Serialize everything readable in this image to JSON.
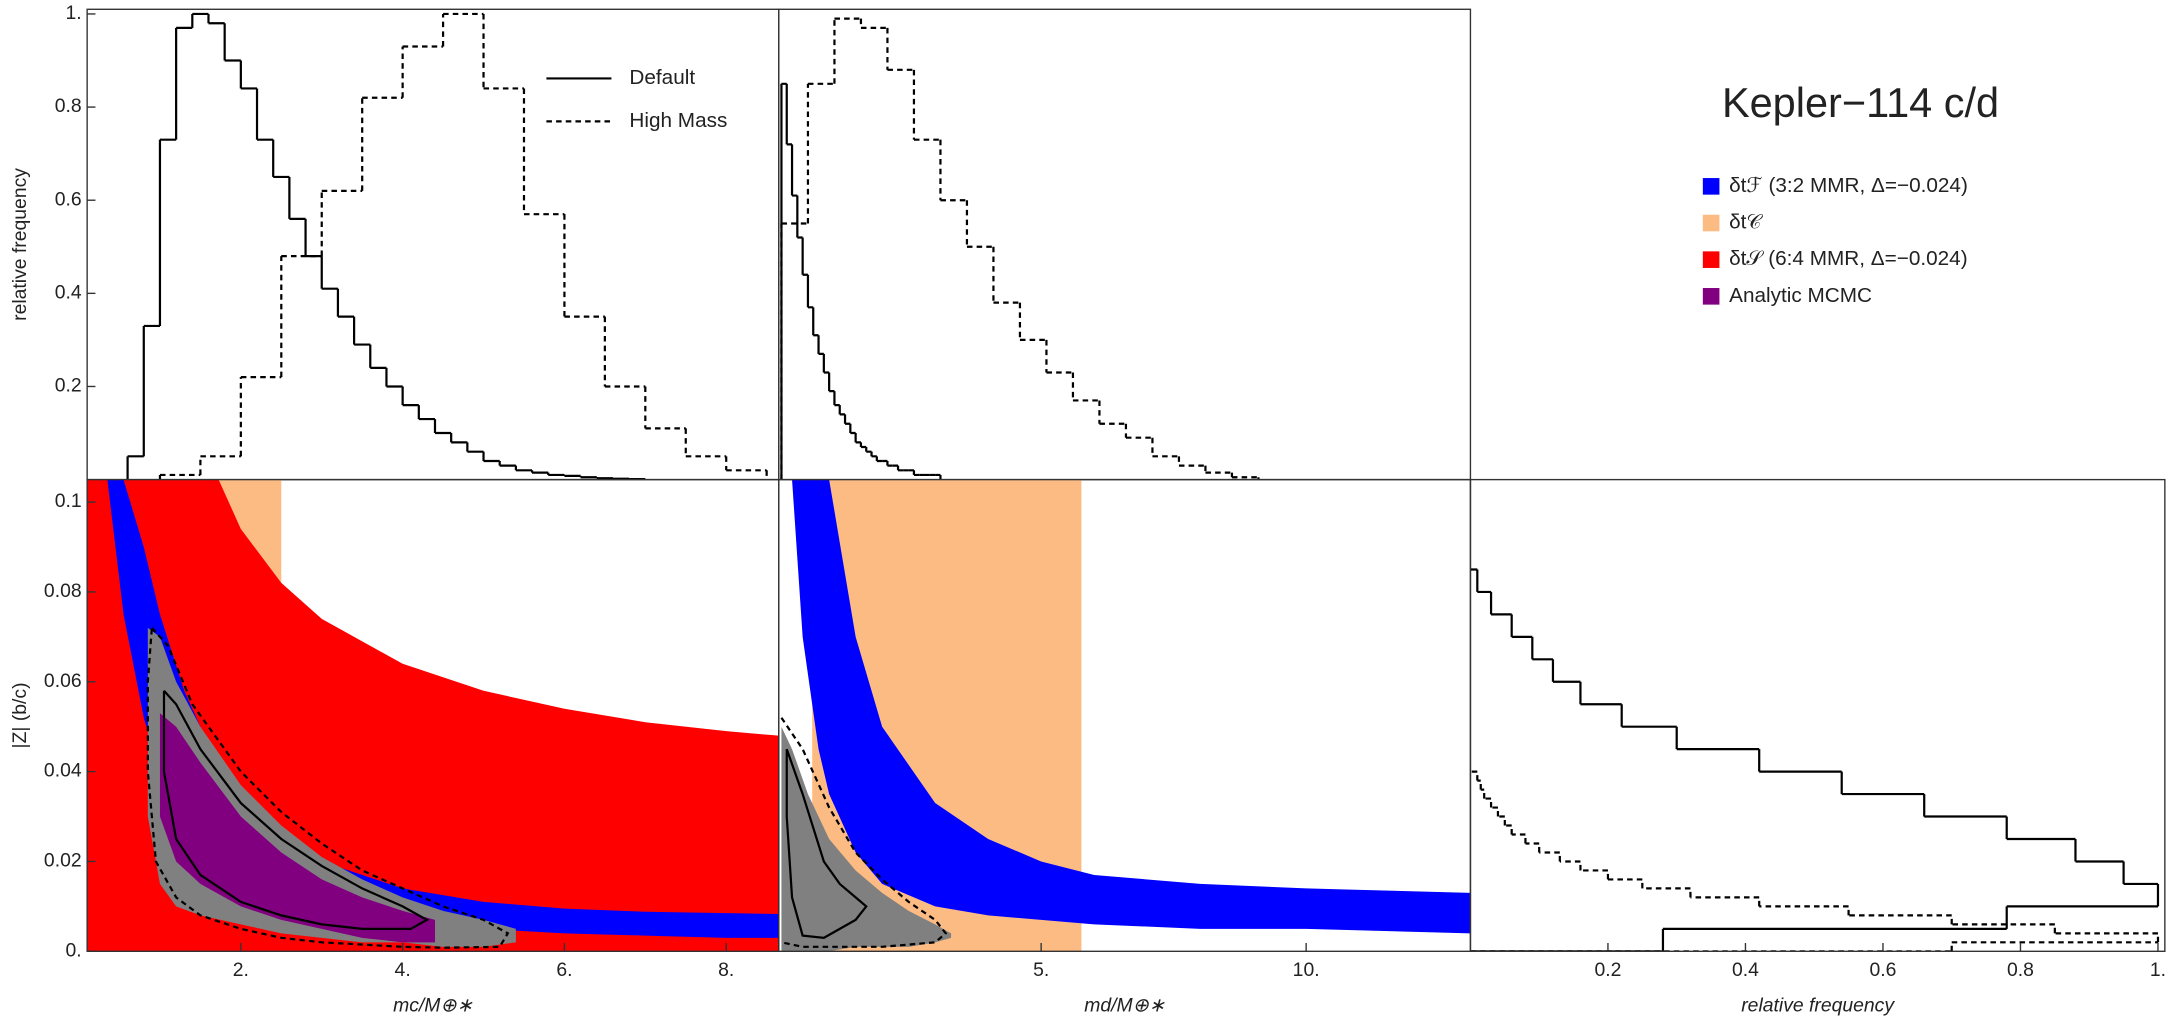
{
  "title": "Kepler−114 c/d",
  "chart_data": [
    {
      "type": "histogram",
      "ylabel": "relative frequency",
      "xlim": [
        0.1,
        8.65
      ],
      "ylim": [
        0,
        1.01
      ],
      "yticks": [
        0.2,
        0.4,
        0.6,
        0.8,
        {
          "value": 1,
          "label": "1."
        }
      ],
      "legend": "upper right",
      "series": [
        {
          "name": "Default",
          "color": "#000000",
          "linestyle": "solid",
          "bins": [
            0.6,
            0.8,
            1,
            1.2,
            1.4,
            1.6,
            1.8,
            2,
            2.2,
            2.4,
            2.6,
            2.8,
            3,
            3.2,
            3.4,
            3.6,
            3.8,
            4,
            4.2,
            4.4,
            4.6,
            4.8,
            5,
            5.2,
            5.4,
            5.6,
            5.8,
            6,
            6.2,
            6.4,
            6.6,
            6.8,
            7
          ],
          "values": [
            0.05,
            0.33,
            0.73,
            0.97,
            1.0,
            0.98,
            0.9,
            0.84,
            0.73,
            0.65,
            0.56,
            0.48,
            0.41,
            0.35,
            0.29,
            0.24,
            0.2,
            0.16,
            0.13,
            0.1,
            0.08,
            0.06,
            0.04,
            0.03,
            0.02,
            0.015,
            0.01,
            0.008,
            0.005,
            0.003,
            0.002,
            0.001
          ]
        },
        {
          "name": "High Mass",
          "color": "#000000",
          "linestyle": "dashed",
          "bins": [
            1,
            1.5,
            2,
            2.5,
            3,
            3.5,
            4,
            4.5,
            5,
            5.5,
            6,
            6.5,
            7,
            7.5,
            8,
            8.5
          ],
          "values": [
            0.01,
            0.05,
            0.22,
            0.48,
            0.62,
            0.82,
            0.93,
            1.0,
            0.84,
            0.57,
            0.35,
            0.2,
            0.11,
            0.05,
            0.02
          ]
        }
      ]
    },
    {
      "type": "histogram",
      "xlim": [
        0.05,
        13.1
      ],
      "ylim": [
        0,
        1.01
      ],
      "series": [
        {
          "color": "#000000",
          "linestyle": "solid",
          "bins": [
            0.1,
            0.2,
            0.3,
            0.4,
            0.5,
            0.6,
            0.7,
            0.8,
            0.9,
            1,
            1.1,
            1.2,
            1.3,
            1.4,
            1.5,
            1.6,
            1.7,
            1.8,
            1.9,
            2,
            2.1,
            2.2,
            2.3,
            2.4,
            2.5,
            2.6,
            2.7,
            2.8,
            2.9,
            3,
            3.1
          ],
          "values": [
            0.85,
            0.72,
            0.61,
            0.52,
            0.44,
            0.37,
            0.31,
            0.27,
            0.23,
            0.19,
            0.16,
            0.14,
            0.12,
            0.1,
            0.08,
            0.07,
            0.06,
            0.05,
            0.04,
            0.04,
            0.03,
            0.03,
            0.02,
            0.02,
            0.02,
            0.01,
            0.01,
            0.01,
            0.01,
            0.01
          ]
        },
        {
          "color": "#000000",
          "linestyle": "dashed",
          "bins": [
            0.1,
            0.6,
            1.1,
            1.6,
            2.1,
            2.6,
            3.1,
            3.6,
            4.1,
            4.6,
            5.1,
            5.6,
            6.1,
            6.6,
            7.1,
            7.6,
            8.1,
            8.6,
            9.1
          ],
          "values": [
            0.55,
            0.85,
            0.99,
            0.97,
            0.88,
            0.73,
            0.6,
            0.5,
            0.38,
            0.3,
            0.23,
            0.17,
            0.12,
            0.09,
            0.05,
            0.03,
            0.015,
            0.005
          ]
        }
      ]
    },
    {
      "type": "region",
      "xlabel": "mc/M⊕∗",
      "ylabel": "|Z| (b/c)",
      "xlim": [
        0.1,
        8.65
      ],
      "ylim": [
        0,
        0.105
      ],
      "xticks": [
        {
          "value": 2,
          "label": "2."
        },
        {
          "value": 4,
          "label": "4."
        },
        {
          "value": 6,
          "label": "6."
        },
        {
          "value": 8,
          "label": "8."
        }
      ],
      "yticks": [
        {
          "value": 0,
          "label": "0."
        },
        0.02,
        0.04,
        0.06,
        0.08,
        0.1
      ],
      "legend": "right",
      "series": [
        {
          "name": "δt𝒞",
          "color": "#fdbb84",
          "kind": "band",
          "x": [
            1.47,
            2.5
          ],
          "upper": [
            0.105,
            0.105
          ],
          "lower": [
            0,
            0
          ]
        },
        {
          "name": "δt𝒮 (6:4 MMR, Δ=−0.024)",
          "color": "#ff0000",
          "kind": "band",
          "x": [
            0.1,
            0.6,
            1,
            1.5,
            2,
            2.5,
            3,
            4,
            5,
            6,
            7,
            8,
            8.65
          ],
          "upper": [
            1.23,
            0.234,
            0.154,
            0.114,
            0.094,
            0.082,
            0.074,
            0.064,
            0.058,
            0.054,
            0.051,
            0.049,
            0.048
          ],
          "lower": [
            0,
            0,
            0,
            0,
            0,
            0,
            0,
            0,
            0,
            0,
            0,
            0,
            0
          ]
        },
        {
          "name": "δtℱ (3:2 MMR, Δ=−0.024)",
          "color": "#0000ff",
          "kind": "band",
          "x": [
            0.35,
            0.55,
            0.8,
            1,
            1.3,
            1.7,
            2.2,
            3,
            4,
            5,
            6,
            7,
            8,
            8.65
          ],
          "upper": [
            0.105,
            0.105,
            0.09,
            0.075,
            0.058,
            0.042,
            0.03,
            0.02,
            0.014,
            0.011,
            0.0095,
            0.0088,
            0.0085,
            0.0083
          ],
          "lower": [
            0.105,
            0.075,
            0.052,
            0.04,
            0.031,
            0.022,
            0.016,
            0.01,
            0.007,
            0.005,
            0.004,
            0.0035,
            0.003,
            0.003
          ]
        },
        {
          "color": "#808080",
          "kind": "band",
          "x": [
            0.85,
            1,
            1.2,
            1.5,
            2,
            2.5,
            3,
            3.5,
            4,
            4.5,
            5,
            5.4
          ],
          "upper": [
            0.072,
            0.07,
            0.06,
            0.05,
            0.037,
            0.028,
            0.021,
            0.016,
            0.012,
            0.009,
            0.007,
            0.005
          ],
          "lower": [
            0.03,
            0.015,
            0.01,
            0.008,
            0.006,
            0.004,
            0.003,
            0.002,
            0.002,
            0.001,
            0.001,
            0.002
          ]
        },
        {
          "name": "Analytic MCMC",
          "color": "#800080",
          "kind": "band",
          "x": [
            1,
            1.2,
            1.5,
            2,
            2.5,
            3,
            3.5,
            4,
            4.4
          ],
          "upper": [
            0.053,
            0.05,
            0.042,
            0.03,
            0.022,
            0.016,
            0.012,
            0.009,
            0.007
          ],
          "lower": [
            0.03,
            0.02,
            0.015,
            0.01,
            0.007,
            0.005,
            0.003,
            0.002,
            0.002
          ]
        },
        {
          "color": "#000000",
          "kind": "contour",
          "linestyle": "solid",
          "x": [
            1.05,
            1.2,
            1.5,
            2,
            2.5,
            3,
            3.5,
            4,
            4.3,
            4.1,
            3.5,
            3,
            2.5,
            2,
            1.5,
            1.2,
            1.05,
            1.05
          ],
          "y": [
            0.058,
            0.055,
            0.045,
            0.033,
            0.025,
            0.019,
            0.014,
            0.01,
            0.007,
            0.005,
            0.005,
            0.006,
            0.008,
            0.011,
            0.017,
            0.025,
            0.04,
            0.058
          ]
        },
        {
          "color": "#000000",
          "kind": "contour",
          "linestyle": "dashed",
          "x": [
            0.9,
            1.1,
            1.4,
            2,
            2.5,
            3,
            3.5,
            4,
            4.5,
            5,
            5.3,
            5.2,
            4.5,
            4,
            3,
            2.5,
            2,
            1.5,
            1.2,
            0.95,
            0.85,
            0.85,
            0.9
          ],
          "y": [
            0.072,
            0.068,
            0.055,
            0.04,
            0.031,
            0.024,
            0.018,
            0.014,
            0.01,
            0.007,
            0.004,
            0.001,
            0.0008,
            0.001,
            0.002,
            0.003,
            0.005,
            0.008,
            0.012,
            0.02,
            0.04,
            0.06,
            0.072
          ]
        }
      ]
    },
    {
      "type": "region",
      "xlabel": "md/M⊕∗",
      "xlim": [
        0.05,
        13.1
      ],
      "ylim": [
        0,
        0.105
      ],
      "xticks": [
        {
          "value": 5,
          "label": "5."
        },
        {
          "value": 10,
          "label": "10."
        }
      ],
      "series": [
        {
          "color": "#fdbb84",
          "kind": "band",
          "x": [
            0.68,
            5.76
          ],
          "upper": [
            0.105,
            0.105
          ],
          "lower": [
            0,
            0
          ]
        },
        {
          "color": "#0000ff",
          "kind": "band",
          "x": [
            0.3,
            0.5,
            0.8,
            1,
            1.5,
            2,
            3,
            4,
            5,
            6,
            8,
            10,
            13.1
          ],
          "upper": [
            0.35,
            0.2,
            0.13,
            0.105,
            0.07,
            0.05,
            0.033,
            0.025,
            0.02,
            0.017,
            0.015,
            0.014,
            0.013
          ],
          "lower": [
            0.105,
            0.07,
            0.045,
            0.035,
            0.022,
            0.015,
            0.01,
            0.008,
            0.007,
            0.006,
            0.005,
            0.005,
            0.004
          ]
        },
        {
          "color": "#808080",
          "kind": "band",
          "x": [
            0.1,
            0.3,
            0.6,
            1,
            1.5,
            2,
            2.5,
            3,
            3.3
          ],
          "upper": [
            0.05,
            0.045,
            0.035,
            0.025,
            0.018,
            0.013,
            0.009,
            0.006,
            0.004
          ],
          "lower": [
            0,
            0,
            0,
            0,
            0.001,
            0.001,
            0.001,
            0.002,
            0.003
          ]
        },
        {
          "color": "#000000",
          "kind": "contour",
          "linestyle": "solid",
          "x": [
            0.2,
            0.5,
            0.9,
            1.2,
            1.5,
            1.7,
            1.5,
            1.2,
            0.9,
            0.5,
            0.3,
            0.2,
            0.2
          ],
          "y": [
            0.045,
            0.035,
            0.02,
            0.015,
            0.012,
            0.01,
            0.007,
            0.005,
            0.003,
            0.0035,
            0.012,
            0.03,
            0.045
          ]
        },
        {
          "color": "#000000",
          "kind": "contour",
          "linestyle": "dashed",
          "x": [
            0.1,
            0.5,
            1,
            1.5,
            2,
            2.5,
            3,
            3.2,
            3,
            2.5,
            2,
            1.2,
            0.5,
            0.1
          ],
          "y": [
            0.052,
            0.045,
            0.032,
            0.022,
            0.016,
            0.011,
            0.007,
            0.004,
            0.002,
            0.0015,
            0.001,
            0.001,
            0.001,
            0.002
          ]
        }
      ]
    },
    {
      "type": "histogram",
      "orientation": "horizontal",
      "xlabel": "relative frequency",
      "xlim": [
        0,
        1.01
      ],
      "ylim": [
        0,
        0.105
      ],
      "xticks": [
        0.2,
        0.4,
        0.6,
        0.8,
        {
          "value": 1,
          "label": "1."
        }
      ],
      "series": [
        {
          "color": "#000000",
          "linestyle": "solid",
          "bins": [
            0,
            0.005,
            0.01,
            0.015,
            0.02,
            0.025,
            0.03,
            0.035,
            0.04,
            0.045,
            0.05,
            0.055,
            0.06,
            0.065,
            0.07,
            0.075,
            0.08,
            0.085
          ],
          "values": [
            0.28,
            0.78,
            1.0,
            0.95,
            0.88,
            0.78,
            0.66,
            0.54,
            0.42,
            0.3,
            0.22,
            0.16,
            0.12,
            0.09,
            0.06,
            0.03,
            0.01
          ]
        },
        {
          "color": "#000000",
          "linestyle": "dashed",
          "bins": [
            0,
            0.002,
            0.004,
            0.006,
            0.008,
            0.01,
            0.012,
            0.014,
            0.016,
            0.018,
            0.02,
            0.022,
            0.024,
            0.026,
            0.028,
            0.03,
            0.032,
            0.034,
            0.036,
            0.038,
            0.04
          ],
          "values": [
            0.7,
            1.0,
            0.85,
            0.7,
            0.55,
            0.42,
            0.32,
            0.25,
            0.2,
            0.16,
            0.13,
            0.1,
            0.08,
            0.06,
            0.05,
            0.04,
            0.03,
            0.02,
            0.015,
            0.01
          ]
        }
      ]
    }
  ]
}
